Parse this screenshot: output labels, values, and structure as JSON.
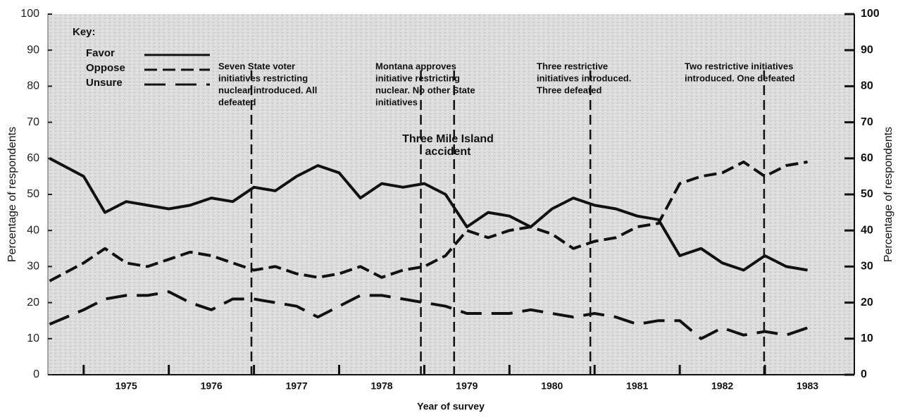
{
  "chart_data": {
    "type": "line",
    "xlabel": "Year of survey",
    "ylabel": "Percentage of respondents",
    "y2label": "Percentage of respondents",
    "key_title": "Key:",
    "xlim": [
      1974.08,
      1983.55
    ],
    "xticks": [
      {
        "value": 1975,
        "label": "1975"
      },
      {
        "value": 1976,
        "label": "1976"
      },
      {
        "value": 1977,
        "label": "1977"
      },
      {
        "value": 1978,
        "label": "1978"
      },
      {
        "value": 1979,
        "label": "1979"
      },
      {
        "value": 1980,
        "label": "1980"
      },
      {
        "value": 1981,
        "label": "1981"
      },
      {
        "value": 1982,
        "label": "1982"
      },
      {
        "value": 1983,
        "label": "1983"
      }
    ],
    "xminorticks": [
      1974.5,
      1975.5,
      1976.5,
      1977.5,
      1978.5,
      1979.5,
      1980.5,
      1981.5,
      1982.5
    ],
    "ylim": [
      0,
      100
    ],
    "yticks": [
      0,
      10,
      20,
      30,
      40,
      50,
      60,
      70,
      80,
      90,
      100
    ],
    "y2lim": [
      0,
      100
    ],
    "y2ticks": [
      0,
      10,
      20,
      30,
      40,
      50,
      60,
      70,
      80,
      90,
      100
    ],
    "x": [
      1974.1,
      1974.5,
      1974.75,
      1975,
      1975.25,
      1975.5,
      1975.75,
      1976,
      1976.25,
      1976.5,
      1976.75,
      1977,
      1977.25,
      1977.5,
      1977.75,
      1978,
      1978.25,
      1978.5,
      1978.75,
      1979,
      1979.25,
      1979.5,
      1979.75,
      1980,
      1980.25,
      1980.5,
      1980.75,
      1981,
      1981.25,
      1981.5,
      1981.75,
      1982,
      1982.25,
      1982.5,
      1982.75,
      1983
    ],
    "series": [
      {
        "name": "Favor",
        "color": "#111111",
        "dash": "solid",
        "values": [
          60,
          55,
          45,
          48,
          47,
          46,
          47,
          49,
          48,
          52,
          51,
          55,
          58,
          56,
          49,
          53,
          52,
          53,
          50,
          41,
          45,
          44,
          41,
          46,
          49,
          47,
          46,
          44,
          43,
          33,
          35,
          31,
          29,
          33,
          30,
          29
        ]
      },
      {
        "name": "Oppose",
        "color": "#111111",
        "dash": "dashed",
        "values": [
          26,
          31,
          35,
          31,
          30,
          32,
          34,
          33,
          31,
          29,
          30,
          28,
          27,
          28,
          30,
          27,
          29,
          30,
          33,
          40,
          38,
          40,
          41,
          39,
          35,
          37,
          38,
          41,
          42,
          53,
          55,
          56,
          59,
          55,
          58,
          59
        ]
      },
      {
        "name": "Unsure",
        "color": "#111111",
        "dash": "long-dashed",
        "values": [
          14,
          18,
          21,
          22,
          22,
          23,
          20,
          18,
          21,
          21,
          20,
          19,
          16,
          19,
          22,
          22,
          21,
          20,
          19,
          17,
          17,
          17,
          18,
          17,
          16,
          17,
          16,
          14,
          15,
          15,
          10,
          13,
          11,
          12,
          11,
          13
        ]
      }
    ],
    "event_lines": [
      1976.47,
      1978.46,
      1978.85,
      1980.45,
      1982.49
    ],
    "annotations": [
      {
        "lines": [
          "Seven State voter",
          "initiatives restricting",
          "nuclear introduced. All",
          "defeated"
        ]
      },
      {
        "lines": [
          "Montana approves",
          "initiative restricting",
          "nuclear. No other State",
          "initiatives"
        ]
      },
      {
        "lines": [
          "Three Mile Island",
          "accident"
        ]
      },
      {
        "lines": [
          "Three restrictive",
          "initiatives introduced.",
          "Three defeated"
        ]
      },
      {
        "lines": [
          "Two restrictive initiatives",
          "introduced. One defeated"
        ]
      }
    ]
  }
}
